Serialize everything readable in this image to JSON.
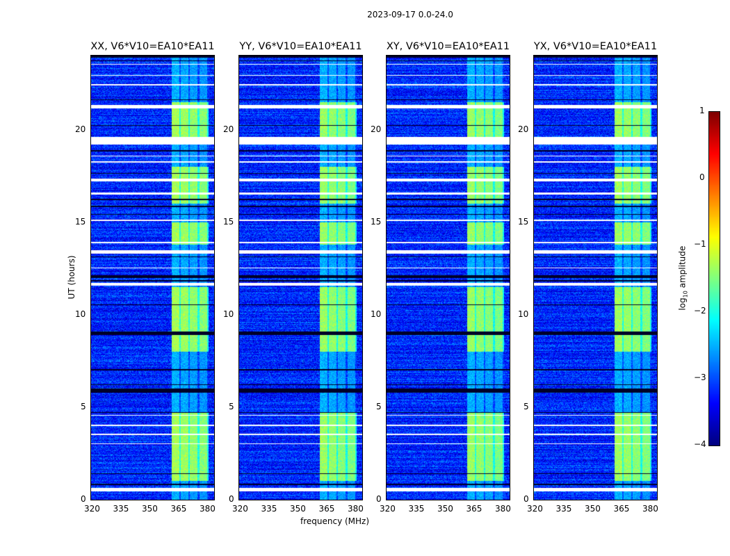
{
  "chart_data": {
    "type": "heatmap",
    "title": "2023-09-17 0.0-24.0",
    "xlabel": "frequency (MHz)",
    "ylabel": "UT (hours)",
    "xlim": [
      320,
      384
    ],
    "ylim": [
      0,
      24
    ],
    "xticks": [
      "320",
      "335",
      "350",
      "365",
      "380"
    ],
    "yticks": [
      "0",
      "5",
      "10",
      "15",
      "20"
    ],
    "panels": [
      {
        "title": "XX, V6*V10=EA10*EA11",
        "signal_boost": 1.0
      },
      {
        "title": "YY, V6*V10=EA10*EA11",
        "signal_boost": 0.8
      },
      {
        "title": "XY, V6*V10=EA10*EA11",
        "signal_boost": 0.8
      },
      {
        "title": "YX, V6*V10=EA10*EA11",
        "signal_boost": 0.9
      }
    ],
    "colorbar": {
      "label": "log10 amplitude",
      "label_main": "log",
      "label_sub": "10",
      "label_rest": " amplitude",
      "range": [
        -4,
        1
      ],
      "ticks": [
        "−4",
        "−3",
        "−2",
        "−1",
        "0",
        "1"
      ],
      "colormap": "jet"
    },
    "background_log_amplitude": -3.2,
    "signal_band_mhz": [
      362,
      381
    ],
    "signal_strong_hours": [
      [
        1,
        4.7
      ],
      [
        8,
        11.5
      ],
      [
        13.8,
        15
      ],
      [
        16,
        18
      ],
      [
        19.5,
        21.5
      ]
    ],
    "signal_log_amplitude": -1.6,
    "flagged_white_hours": [
      [
        0.45,
        0.65
      ],
      [
        3.0,
        3.05
      ],
      [
        3.5,
        3.55
      ],
      [
        4.0,
        4.05
      ],
      [
        4.55,
        4.6
      ],
      [
        11.55,
        11.7
      ],
      [
        12.5,
        12.55
      ],
      [
        13.3,
        13.5
      ],
      [
        13.85,
        13.95
      ],
      [
        15.05,
        15.15
      ],
      [
        16.5,
        16.6
      ],
      [
        17.2,
        17.35
      ],
      [
        18.2,
        18.3
      ],
      [
        18.55,
        18.6
      ],
      [
        19.2,
        19.6
      ],
      [
        21.15,
        21.35
      ],
      [
        22.4,
        22.45
      ],
      [
        22.9,
        22.95
      ],
      [
        23.5,
        23.55
      ]
    ],
    "flagged_black_hours": [
      [
        0.8,
        0.85
      ],
      [
        1.4,
        1.42
      ],
      [
        4.7,
        4.75
      ],
      [
        5.8,
        6.0
      ],
      [
        6.2,
        6.25
      ],
      [
        7.0,
        7.05
      ],
      [
        8.9,
        9.1
      ],
      [
        10.5,
        10.55
      ],
      [
        11.8,
        11.85
      ],
      [
        12.0,
        12.15
      ],
      [
        13.1,
        13.15
      ],
      [
        15.4,
        15.45
      ],
      [
        15.8,
        15.9
      ],
      [
        16.2,
        16.25
      ],
      [
        17.6,
        17.65
      ],
      [
        18.8,
        18.9
      ],
      [
        20.2,
        20.25
      ],
      [
        21.6,
        21.65
      ],
      [
        23.7,
        23.75
      ],
      [
        23.9,
        24.0
      ]
    ]
  }
}
